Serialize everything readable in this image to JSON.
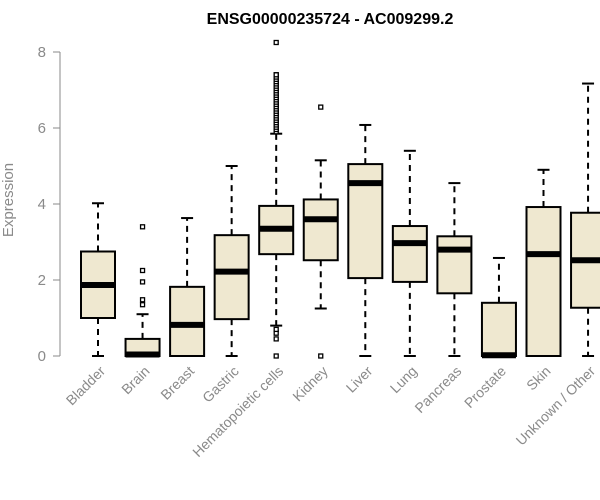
{
  "chart_data": {
    "type": "boxplot",
    "title": "ENSG00000235724 - AC009299.2",
    "xlabel": "",
    "ylabel": "Expression",
    "ylim": [
      0,
      8.3
    ],
    "yticks": [
      0,
      2,
      4,
      6,
      8
    ],
    "grid": false,
    "legend": "none",
    "box_fill": "#efe8d0",
    "box_stroke": "#000000",
    "median_color": "#000000",
    "axis_color": "#8a8a8a",
    "categories": [
      "Bladder",
      "Brain",
      "Breast",
      "Gastric",
      "Hematopoietic cells",
      "Kidney",
      "Liver",
      "Lung",
      "Pancreas",
      "Prostate",
      "Skin",
      "Unknown / Other"
    ],
    "boxes": [
      {
        "category": "Bladder",
        "whisker_low": 0,
        "q1": 1.0,
        "median": 1.87,
        "q3": 2.75,
        "whisker_high": 4.02,
        "outliers": []
      },
      {
        "category": "Brain",
        "whisker_low": 0,
        "q1": 0,
        "median": 0.04,
        "q3": 0.45,
        "whisker_high": 1.1,
        "outliers": [
          1.35,
          1.48,
          1.95,
          2.25,
          3.4
        ]
      },
      {
        "category": "Breast",
        "whisker_low": 0,
        "q1": 0,
        "median": 0.82,
        "q3": 1.82,
        "whisker_high": 3.63,
        "outliers": []
      },
      {
        "category": "Gastric",
        "whisker_low": 0,
        "q1": 0.97,
        "median": 2.22,
        "q3": 3.18,
        "whisker_high": 5.0,
        "outliers": []
      },
      {
        "category": "Hematopoietic cells",
        "whisker_low": 0.8,
        "q1": 2.68,
        "median": 3.35,
        "q3": 3.95,
        "whisker_high": 5.85,
        "outliers": [
          0,
          0.45,
          0.6,
          0.7,
          6.0,
          6.2,
          6.4,
          6.6,
          6.8,
          7.0,
          7.2,
          7.4,
          8.25
        ]
      },
      {
        "category": "Kidney",
        "whisker_low": 1.25,
        "q1": 2.52,
        "median": 3.6,
        "q3": 4.12,
        "whisker_high": 5.15,
        "outliers": [
          0,
          6.55
        ]
      },
      {
        "category": "Liver",
        "whisker_low": 0,
        "q1": 2.05,
        "median": 4.55,
        "q3": 5.05,
        "whisker_high": 6.08,
        "outliers": []
      },
      {
        "category": "Lung",
        "whisker_low": 0,
        "q1": 1.95,
        "median": 2.97,
        "q3": 3.42,
        "whisker_high": 5.4,
        "outliers": []
      },
      {
        "category": "Pancreas",
        "whisker_low": 0,
        "q1": 1.65,
        "median": 2.8,
        "q3": 3.15,
        "whisker_high": 4.55,
        "outliers": []
      },
      {
        "category": "Prostate",
        "whisker_low": 0,
        "q1": 0,
        "median": 0.02,
        "q3": 1.4,
        "whisker_high": 2.58,
        "outliers": []
      },
      {
        "category": "Skin",
        "whisker_low": 0,
        "q1": 0,
        "median": 2.68,
        "q3": 3.92,
        "whisker_high": 4.9,
        "outliers": []
      },
      {
        "category": "Unknown / Other",
        "whisker_low": 0,
        "q1": 1.27,
        "median": 2.52,
        "q3": 3.77,
        "whisker_high": 7.17,
        "outliers": []
      }
    ]
  }
}
